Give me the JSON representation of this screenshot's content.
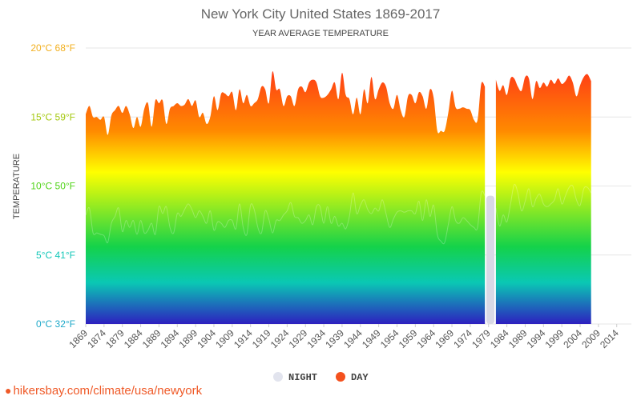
{
  "title": "New York City United States 1869-2017",
  "subtitle": "YEAR AVERAGE TEMPERATURE",
  "footer_url": "hikersbay.com/climate/usa/newyork",
  "colors": {
    "gradient_top": "#ff1f1f",
    "gradient_orange": "#ff8a00",
    "gradient_yellow": "#ffff00",
    "gradient_green": "#14d24a",
    "gradient_teal": "#0ac8b4",
    "gradient_bottom": "#2d1fbf",
    "night_legend": "#e2e4ee",
    "day_legend": "#f4511e",
    "gap_night": "#d8d8e6"
  },
  "chart_data": {
    "type": "area",
    "ylabel": "TEMPERATURE",
    "ylim": [
      0,
      20
    ],
    "y_ticks": [
      {
        "value": 0,
        "label": "0°C 32°F",
        "color": "#1fa9c9"
      },
      {
        "value": 5,
        "label": "5°C 41°F",
        "color": "#14c7b8"
      },
      {
        "value": 10,
        "label": "10°C 50°F",
        "color": "#4ed315"
      },
      {
        "value": 15,
        "label": "15°C 59°F",
        "color": "#a4c80e"
      },
      {
        "value": 20,
        "label": "20°C 68°F",
        "color": "#f2b020"
      }
    ],
    "x_ticks": [
      "1869",
      "1874",
      "1879",
      "1884",
      "1889",
      "1894",
      "1899",
      "1904",
      "1909",
      "1914",
      "1919",
      "1924",
      "1929",
      "1934",
      "1939",
      "1944",
      "1949",
      "1954",
      "1959",
      "1964",
      "1969",
      "1974",
      "1979",
      "1984",
      "1989",
      "1994",
      "1999",
      "2004",
      "2009",
      "2014"
    ],
    "xlim": [
      1869,
      2018
    ],
    "grid": true,
    "legend_position": "bottom",
    "series": [
      {
        "name": "NIGHT",
        "start_year": 1869,
        "values": [
          7.9,
          8.4,
          6.6,
          6.6,
          6.5,
          6.4,
          5.9,
          7.3,
          7.8,
          8.4,
          6.7,
          7.5,
          7.0,
          7.5,
          6.5,
          7.5,
          6.6,
          6.8,
          7.3,
          6.5,
          8.5,
          8.0,
          8.5,
          7.0,
          6.6,
          8.0,
          7.8,
          8.3,
          8.7,
          8.3,
          7.7,
          8.2,
          7.8,
          7.3,
          8.2,
          6.8,
          7.4,
          7.3,
          7.0,
          7.5,
          7.5,
          6.9,
          8.7,
          7.0,
          6.5,
          8.6,
          8.3,
          7.0,
          6.6,
          8.2,
          7.6,
          6.6,
          7.5,
          7.5,
          7.9,
          8.2,
          8.8,
          7.8,
          7.7,
          7.3,
          7.5,
          7.9,
          7.2,
          8.5,
          8.5,
          7.3,
          8.5,
          7.3,
          7.8,
          7.1,
          7.3,
          6.9,
          7.8,
          9.5,
          8.0,
          8.6,
          9.0,
          8.3,
          8.0,
          8.4,
          8.2,
          9.0,
          8.0,
          7.0,
          7.6,
          8.1,
          8.2,
          8.1,
          8.2,
          8.2,
          8.0,
          8.9,
          7.5,
          9.0,
          7.8,
          8.6,
          6.5,
          6.0,
          5.9,
          7.2,
          8.5,
          7.5,
          7.3,
          7.7,
          7.5,
          7.2,
          7.0,
          7.0,
          9.5,
          9.3,
          null,
          null,
          8.4,
          7.1,
          7.9,
          7.4,
          8.7,
          10.1,
          9.5,
          8.2,
          8.9,
          9.8,
          8.5,
          9.1,
          9.4,
          8.7,
          8.5,
          8.7,
          9.0,
          9.8,
          8.7,
          9.3,
          9.9,
          10.0,
          9.0,
          8.6,
          9.8,
          9.9,
          9.5,
          null,
          null,
          null,
          null,
          null,
          null,
          null,
          null,
          null,
          null
        ],
        "color": "#e2e4ee"
      },
      {
        "name": "DAY",
        "start_year": 1869,
        "values": [
          15.2,
          15.8,
          15.0,
          15.0,
          14.8,
          15.0,
          13.7,
          15.1,
          15.5,
          15.8,
          15.3,
          15.8,
          15.2,
          14.2,
          15.0,
          14.3,
          15.6,
          16.0,
          14.3,
          16.2,
          16.0,
          16.2,
          14.5,
          15.6,
          15.8,
          16.0,
          15.8,
          15.9,
          16.3,
          15.8,
          16.2,
          15.0,
          15.3,
          14.5,
          15.0,
          16.5,
          15.5,
          16.7,
          16.7,
          16.5,
          16.8,
          15.5,
          17.0,
          16.0,
          16.6,
          15.8,
          16.0,
          16.3,
          17.2,
          17.0,
          16.0,
          18.3,
          17.0,
          17.0,
          15.8,
          16.5,
          16.5,
          15.8,
          17.0,
          17.2,
          16.8,
          17.5,
          17.7,
          17.5,
          16.5,
          16.4,
          16.6,
          17.0,
          17.5,
          16.3,
          18.2,
          16.6,
          16.3,
          15.2,
          16.4,
          15.2,
          17.0,
          16.0,
          17.9,
          16.3,
          17.0,
          17.5,
          17.2,
          16.0,
          15.6,
          16.6,
          15.5,
          15.0,
          16.5,
          16.6,
          16.0,
          16.8,
          16.5,
          15.6,
          17.0,
          16.4,
          14.0,
          14.0,
          14.0,
          15.3,
          16.9,
          15.7,
          15.6,
          15.7,
          15.6,
          15.5,
          14.8,
          14.8,
          17.4,
          17.2,
          null,
          null,
          17.7,
          16.9,
          17.3,
          16.6,
          17.8,
          17.8,
          17.2,
          16.9,
          17.9,
          17.8,
          16.3,
          17.6,
          17.1,
          17.5,
          17.2,
          17.7,
          17.4,
          17.8,
          17.4,
          17.6,
          18.0,
          17.5,
          16.5,
          17.3,
          17.9,
          18.1,
          17.6,
          null,
          null,
          null,
          null,
          null,
          null,
          null,
          null,
          null,
          null
        ],
        "color": "#f4511e"
      }
    ]
  }
}
